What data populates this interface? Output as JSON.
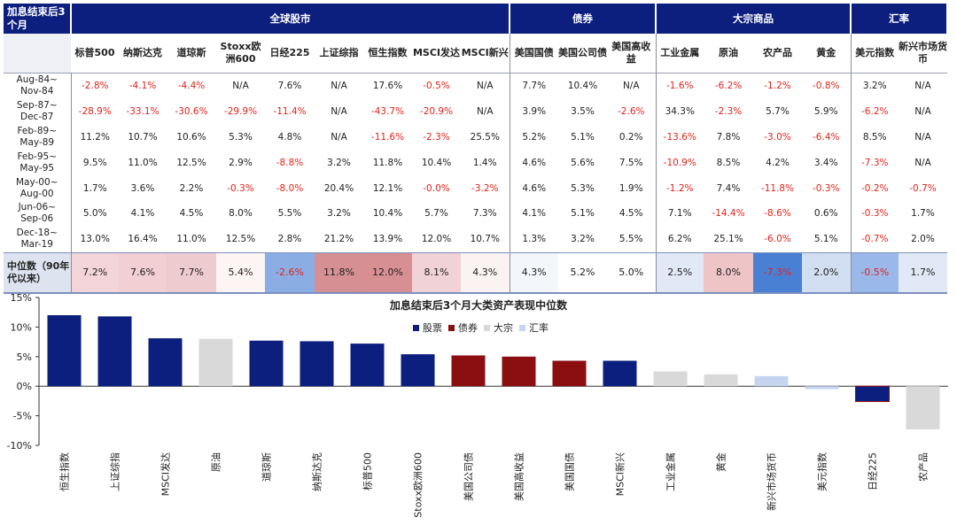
{
  "table": {
    "corner_title": "加息结束后3个月",
    "groups": [
      {
        "label": "全球股市",
        "span": 9
      },
      {
        "label": "债券",
        "span": 3
      },
      {
        "label": "大宗商品",
        "span": 4
      },
      {
        "label": "汇率",
        "span": 2
      }
    ],
    "columns": [
      "标普500",
      "纳斯达克",
      "道琼斯",
      "Stoxx欧洲600",
      "日经225",
      "上证综指",
      "恒生指数",
      "MSCI发达",
      "MSCI新兴",
      "美国国债",
      "美国公司债",
      "美国高收益",
      "工业金属",
      "原油",
      "农产品",
      "黄金",
      "美元指数",
      "新兴市场货币"
    ],
    "rows": [
      {
        "period": "Aug-84~Nov-84",
        "p1": "Aug-84~",
        "p2": "Nov-84",
        "cells": [
          "-2.8%",
          "-4.1%",
          "-4.4%",
          "N/A",
          "7.6%",
          "N/A",
          "17.6%",
          "-0.5%",
          "N/A",
          "7.7%",
          "10.4%",
          "N/A",
          "-1.6%",
          "-6.2%",
          "-1.2%",
          "-0.8%",
          "3.2%",
          "N/A"
        ]
      },
      {
        "period": "Sep-87~Dec-87",
        "p1": "Sep-87~",
        "p2": "Dec-87",
        "cells": [
          "-28.9%",
          "-33.1%",
          "-30.6%",
          "-29.9%",
          "-11.4%",
          "N/A",
          "-43.7%",
          "-20.9%",
          "N/A",
          "3.9%",
          "3.5%",
          "-2.6%",
          "34.3%",
          "-2.3%",
          "5.7%",
          "5.9%",
          "-6.2%",
          "N/A"
        ]
      },
      {
        "period": "Feb-89~May-89",
        "p1": "Feb-89~",
        "p2": "May-89",
        "cells": [
          "11.2%",
          "10.7%",
          "10.6%",
          "5.3%",
          "4.8%",
          "N/A",
          "-11.6%",
          "-2.3%",
          "25.5%",
          "5.2%",
          "5.1%",
          "0.2%",
          "-13.6%",
          "7.8%",
          "-3.0%",
          "-6.4%",
          "8.5%",
          "N/A"
        ]
      },
      {
        "period": "Feb-95~May-95",
        "p1": "Feb-95~",
        "p2": "May-95",
        "cells": [
          "9.5%",
          "11.0%",
          "12.5%",
          "2.9%",
          "-8.8%",
          "3.2%",
          "11.8%",
          "10.4%",
          "1.4%",
          "4.6%",
          "5.6%",
          "7.5%",
          "-10.9%",
          "8.5%",
          "4.2%",
          "3.4%",
          "-7.3%",
          "N/A"
        ]
      },
      {
        "period": "May-00~Aug-00",
        "p1": "May-00~",
        "p2": "Aug-00",
        "cells": [
          "1.7%",
          "3.6%",
          "2.2%",
          "-0.3%",
          "-8.0%",
          "20.4%",
          "12.1%",
          "-0.0%",
          "-3.2%",
          "4.6%",
          "5.3%",
          "1.9%",
          "-1.2%",
          "7.4%",
          "-11.8%",
          "-0.3%",
          "-0.2%",
          "-0.7%"
        ]
      },
      {
        "period": "Jun-06~Sep-06",
        "p1": "Jun-06~",
        "p2": "Sep-06",
        "cells": [
          "5.0%",
          "4.1%",
          "4.5%",
          "8.0%",
          "5.5%",
          "3.2%",
          "10.4%",
          "5.7%",
          "7.3%",
          "4.1%",
          "5.1%",
          "4.5%",
          "7.1%",
          "-14.4%",
          "-8.6%",
          "0.6%",
          "-0.3%",
          "1.7%"
        ]
      },
      {
        "period": "Dec-18~Mar-19",
        "p1": "Dec-18~",
        "p2": "Mar-19",
        "cells": [
          "13.0%",
          "16.4%",
          "11.0%",
          "12.5%",
          "2.8%",
          "21.2%",
          "13.9%",
          "12.0%",
          "10.7%",
          "1.3%",
          "3.2%",
          "5.5%",
          "6.2%",
          "25.1%",
          "-6.0%",
          "5.1%",
          "-0.7%",
          "2.0%"
        ]
      }
    ],
    "median": {
      "label": "中位数（90年代以来）",
      "cells": [
        "7.2%",
        "7.6%",
        "7.7%",
        "5.4%",
        "-2.6%",
        "11.8%",
        "12.0%",
        "8.1%",
        "4.3%",
        "4.3%",
        "5.2%",
        "5.0%",
        "2.5%",
        "8.0%",
        "-7.3%",
        "2.0%",
        "-0.5%",
        "1.7%"
      ],
      "neg_text": [
        4,
        14,
        16
      ],
      "colors": [
        "#f3d4d8",
        "#f1cfd3",
        "#eecbce",
        "#fdf4f4",
        "#8aaee4",
        "#d68f93",
        "#d88f93",
        "#f1d2d6",
        "#fbf2f2",
        "#f3f6fb",
        "#ffffff",
        "#ffffff",
        "#e1e9f6",
        "#efc4c7",
        "#4a80d4",
        "#d2dff2",
        "#9ab8ea",
        "#e1e9f6"
      ]
    }
  },
  "chart_data": {
    "type": "bar",
    "title": "加息结束后3个月大类资产表现中位数",
    "categories": [
      "恒生指数",
      "上证综指",
      "MSCI发达",
      "原油",
      "道琼斯",
      "纳斯达克",
      "标普500",
      "Stoxx欧洲600",
      "美国公司债",
      "美国高收益",
      "美国国债",
      "MSCI新兴",
      "工业金属",
      "黄金",
      "新兴市场货币",
      "美元指数",
      "日经225",
      "农产品"
    ],
    "values": [
      12.0,
      11.8,
      8.1,
      8.0,
      7.7,
      7.6,
      7.2,
      5.4,
      5.2,
      5.0,
      4.3,
      4.3,
      2.5,
      2.0,
      1.7,
      -0.5,
      -2.6,
      -7.3
    ],
    "classes": [
      "股票",
      "股票",
      "股票",
      "大宗",
      "股票",
      "股票",
      "股票",
      "股票",
      "债券",
      "债券",
      "债券",
      "股票",
      "大宗",
      "大宗",
      "汇率",
      "汇率",
      "股票",
      "大宗"
    ],
    "legend": [
      {
        "name": "股票",
        "color": "#0c1f7e"
      },
      {
        "name": "债券",
        "color": "#8b0e10"
      },
      {
        "name": "大宗",
        "color": "#d9d9d9"
      },
      {
        "name": "汇率",
        "color": "#c5d5ef"
      }
    ],
    "ylim": [
      -10,
      15
    ],
    "yticks": [
      "15%",
      "10%",
      "5%",
      "0%",
      "-5%",
      "-10%"
    ],
    "ytick_values": [
      15,
      10,
      5,
      0,
      -5,
      -10
    ],
    "legend_position": "top-center",
    "grid": false
  }
}
